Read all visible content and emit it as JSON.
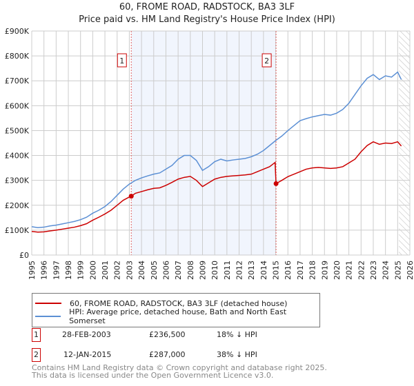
{
  "chart_data": {
    "type": "line",
    "title": "60, FROME ROAD, RADSTOCK, BA3 3LF",
    "subtitle": "Price paid vs. HM Land Registry's House Price Index (HPI)",
    "xlim": [
      1995,
      2026
    ],
    "ylim": [
      0,
      900000
    ],
    "x_ticks": [
      "1995",
      "1996",
      "1997",
      "1998",
      "1999",
      "2000",
      "2001",
      "2002",
      "2003",
      "2004",
      "2005",
      "2006",
      "2007",
      "2008",
      "2009",
      "2010",
      "2011",
      "2012",
      "2013",
      "2014",
      "2015",
      "2016",
      "2017",
      "2018",
      "2019",
      "2020",
      "2021",
      "2022",
      "2023",
      "2024",
      "2025",
      "2026"
    ],
    "y_ticks": [
      {
        "v": 0,
        "l": "£0"
      },
      {
        "v": 100000,
        "l": "£100K"
      },
      {
        "v": 200000,
        "l": "£200K"
      },
      {
        "v": 300000,
        "l": "£300K"
      },
      {
        "v": 400000,
        "l": "£400K"
      },
      {
        "v": 500000,
        "l": "£500K"
      },
      {
        "v": 600000,
        "l": "£600K"
      },
      {
        "v": 700000,
        "l": "£700K"
      },
      {
        "v": 800000,
        "l": "£800K"
      },
      {
        "v": 900000,
        "l": "£900K"
      }
    ],
    "grid": true,
    "series": [
      {
        "name": "60, FROME ROAD, RADSTOCK, BA3 3LF (detached house)",
        "color": "#cc0000",
        "x": [
          1995,
          1995.5,
          1996,
          1996.5,
          1997,
          1997.5,
          1998,
          1998.5,
          1999,
          1999.5,
          2000,
          2000.5,
          2001,
          2001.5,
          2002,
          2002.5,
          2003,
          2003.16,
          2003.5,
          2004,
          2004.5,
          2005,
          2005.5,
          2006,
          2006.5,
          2007,
          2007.5,
          2008,
          2008.5,
          2009,
          2009.5,
          2010,
          2010.5,
          2011,
          2011.5,
          2012,
          2012.5,
          2013,
          2013.5,
          2014,
          2014.5,
          2014.95,
          2015.03,
          2015.5,
          2016,
          2016.5,
          2017,
          2017.5,
          2018,
          2018.5,
          2019,
          2019.5,
          2020,
          2020.5,
          2021,
          2021.5,
          2022,
          2022.5,
          2023,
          2023.5,
          2024,
          2024.5,
          2025,
          2025.3
        ],
        "y": [
          95000,
          92000,
          93000,
          97000,
          100000,
          104000,
          108000,
          112000,
          118000,
          126000,
          140000,
          152000,
          165000,
          180000,
          200000,
          220000,
          233000,
          236500,
          248000,
          255000,
          262000,
          268000,
          270000,
          280000,
          292000,
          305000,
          312000,
          316000,
          300000,
          275000,
          290000,
          305000,
          312000,
          316000,
          318000,
          320000,
          322000,
          325000,
          335000,
          345000,
          355000,
          372000,
          287000,
          300000,
          315000,
          325000,
          335000,
          345000,
          350000,
          352000,
          350000,
          348000,
          350000,
          355000,
          370000,
          385000,
          415000,
          440000,
          455000,
          445000,
          450000,
          448000,
          455000,
          438000
        ]
      },
      {
        "name": "HPI: Average price, detached house, Bath and North East Somerset",
        "color": "#5b8fd4",
        "x": [
          1995,
          1995.5,
          1996,
          1996.5,
          1997,
          1997.5,
          1998,
          1998.5,
          1999,
          1999.5,
          2000,
          2000.5,
          2001,
          2001.5,
          2002,
          2002.5,
          2003,
          2003.5,
          2004,
          2004.5,
          2005,
          2005.5,
          2006,
          2006.5,
          2007,
          2007.5,
          2008,
          2008.5,
          2009,
          2009.5,
          2010,
          2010.5,
          2011,
          2011.5,
          2012,
          2012.5,
          2013,
          2013.5,
          2014,
          2014.5,
          2015,
          2015.5,
          2016,
          2016.5,
          2017,
          2017.5,
          2018,
          2018.5,
          2019,
          2019.5,
          2020,
          2020.5,
          2021,
          2021.5,
          2022,
          2022.5,
          2023,
          2023.5,
          2024,
          2024.5,
          2025,
          2025.3
        ],
        "y": [
          114000,
          110000,
          112000,
          117000,
          120000,
          125000,
          130000,
          135000,
          142000,
          152000,
          168000,
          180000,
          195000,
          215000,
          240000,
          265000,
          285000,
          300000,
          310000,
          318000,
          325000,
          330000,
          345000,
          360000,
          385000,
          400000,
          400000,
          380000,
          340000,
          355000,
          375000,
          385000,
          378000,
          382000,
          385000,
          388000,
          395000,
          405000,
          420000,
          440000,
          460000,
          478000,
          500000,
          520000,
          540000,
          548000,
          555000,
          560000,
          565000,
          562000,
          570000,
          585000,
          610000,
          645000,
          680000,
          710000,
          725000,
          705000,
          720000,
          715000,
          735000,
          705000
        ]
      }
    ],
    "shaded_range": [
      2003.16,
      2015.03
    ],
    "hatched_from": 2025.1,
    "markers": [
      {
        "label": "1",
        "x": 2003.16,
        "y": 236500
      },
      {
        "label": "2",
        "x": 2015.03,
        "y": 287000
      }
    ]
  },
  "legend": {
    "red": "60, FROME ROAD, RADSTOCK, BA3 3LF (detached house)",
    "blue": "HPI: Average price, detached house, Bath and North East Somerset"
  },
  "transactions": [
    {
      "num": "1",
      "date": "28-FEB-2003",
      "price": "£236,500",
      "delta": "18% ↓ HPI"
    },
    {
      "num": "2",
      "date": "12-JAN-2015",
      "price": "£287,000",
      "delta": "38% ↓ HPI"
    }
  ],
  "footer": {
    "line1": "Contains HM Land Registry data © Crown copyright and database right 2025.",
    "line2": "This data is licensed under the Open Government Licence v3.0."
  }
}
